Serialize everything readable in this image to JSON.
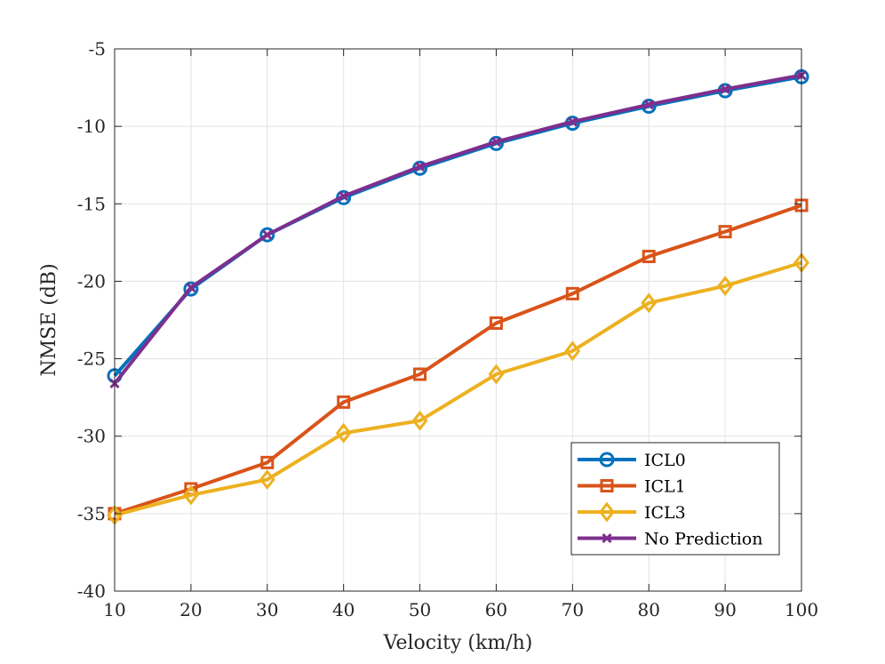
{
  "chart_data": {
    "type": "line",
    "title": "",
    "xlabel": "Velocity (km/h)",
    "ylabel": "NMSE (dB)",
    "x": [
      10,
      20,
      30,
      40,
      50,
      60,
      70,
      80,
      90,
      100
    ],
    "xlim": [
      10,
      100
    ],
    "ylim": [
      -40,
      -5
    ],
    "xticks": [
      10,
      20,
      30,
      40,
      50,
      60,
      70,
      80,
      90,
      100
    ],
    "yticks": [
      -40,
      -35,
      -30,
      -25,
      -20,
      -15,
      -10,
      -5
    ],
    "grid": true,
    "legend_position": "bottom-right",
    "series": [
      {
        "name": "ICL0",
        "color": "#0072BD",
        "marker": "circle",
        "values": [
          -26.1,
          -20.5,
          -17.0,
          -14.6,
          -12.7,
          -11.1,
          -9.8,
          -8.7,
          -7.7,
          -6.8
        ]
      },
      {
        "name": "ICL1",
        "color": "#D95319",
        "marker": "square",
        "values": [
          -35.0,
          -33.4,
          -31.7,
          -27.8,
          -26.0,
          -22.7,
          -20.8,
          -18.4,
          -16.8,
          -15.1
        ]
      },
      {
        "name": "ICL3",
        "color": "#EDB120",
        "marker": "diamond",
        "values": [
          -35.1,
          -33.8,
          -32.8,
          -29.8,
          -29.0,
          -26.0,
          -24.5,
          -21.4,
          -20.3,
          -18.8
        ]
      },
      {
        "name": "No Prediction",
        "color": "#7E2F8E",
        "marker": "x",
        "values": [
          -26.6,
          -20.4,
          -17.0,
          -14.5,
          -12.6,
          -11.0,
          -9.7,
          -8.6,
          -7.6,
          -6.7
        ]
      }
    ]
  }
}
